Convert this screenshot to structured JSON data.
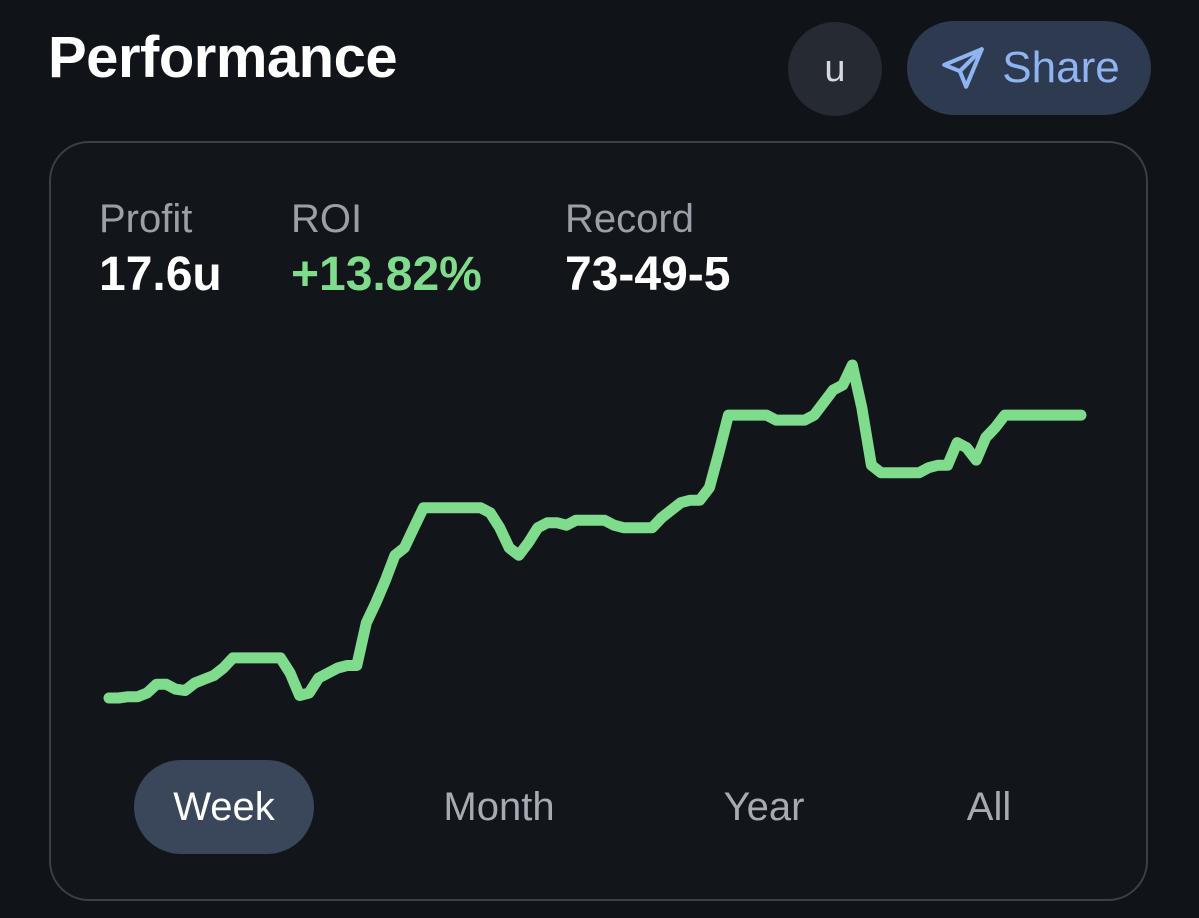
{
  "header": {
    "title": "Performance",
    "unit_label": "u",
    "share_label": "Share"
  },
  "stats": {
    "profit": {
      "label": "Profit",
      "value": "17.6u"
    },
    "roi": {
      "label": "ROI",
      "value": "+13.82%"
    },
    "record": {
      "label": "Record",
      "value": "73-49-5"
    }
  },
  "colors": {
    "accent_green": "#7fdc8c",
    "share_blue": "#8fb4f2"
  },
  "chart_data": {
    "type": "line",
    "series": [
      {
        "values": [
          0.0,
          0.0,
          0.05,
          0.05,
          0.2,
          0.55,
          0.55,
          0.35,
          0.3,
          0.6,
          0.75,
          0.9,
          1.2,
          1.6,
          1.6,
          1.6,
          1.6,
          1.6,
          1.6,
          1.0,
          0.1,
          0.2,
          0.8,
          1.0,
          1.2,
          1.3,
          1.3,
          3.0,
          3.8,
          4.7,
          5.7,
          6.0,
          6.8,
          7.6,
          7.6,
          7.6,
          7.6,
          7.6,
          7.6,
          7.6,
          7.4,
          6.8,
          6.0,
          5.7,
          6.2,
          6.8,
          7.0,
          7.0,
          6.9,
          7.1,
          7.1,
          7.1,
          7.1,
          6.9,
          6.8,
          6.8,
          6.8,
          6.8,
          7.2,
          7.5,
          7.8,
          7.9,
          7.9,
          8.4,
          9.8,
          11.3,
          11.3,
          11.3,
          11.3,
          11.3,
          11.1,
          11.1,
          11.1,
          11.1,
          11.3,
          11.8,
          12.3,
          12.5,
          13.3,
          11.6,
          9.3,
          9.0,
          9.0,
          9.0,
          9.0,
          9.0,
          9.2,
          9.3,
          9.3,
          10.2,
          10.0,
          9.5,
          10.4,
          10.8,
          11.3,
          11.3,
          11.3,
          11.3,
          11.3,
          11.3,
          11.3,
          11.3,
          11.3
        ]
      }
    ],
    "x_ticks": [],
    "grid": false,
    "legend": "none"
  },
  "tabs": [
    {
      "label": "Week",
      "active": true
    },
    {
      "label": "Month",
      "active": false
    },
    {
      "label": "Year",
      "active": false
    },
    {
      "label": "All",
      "active": false
    }
  ]
}
